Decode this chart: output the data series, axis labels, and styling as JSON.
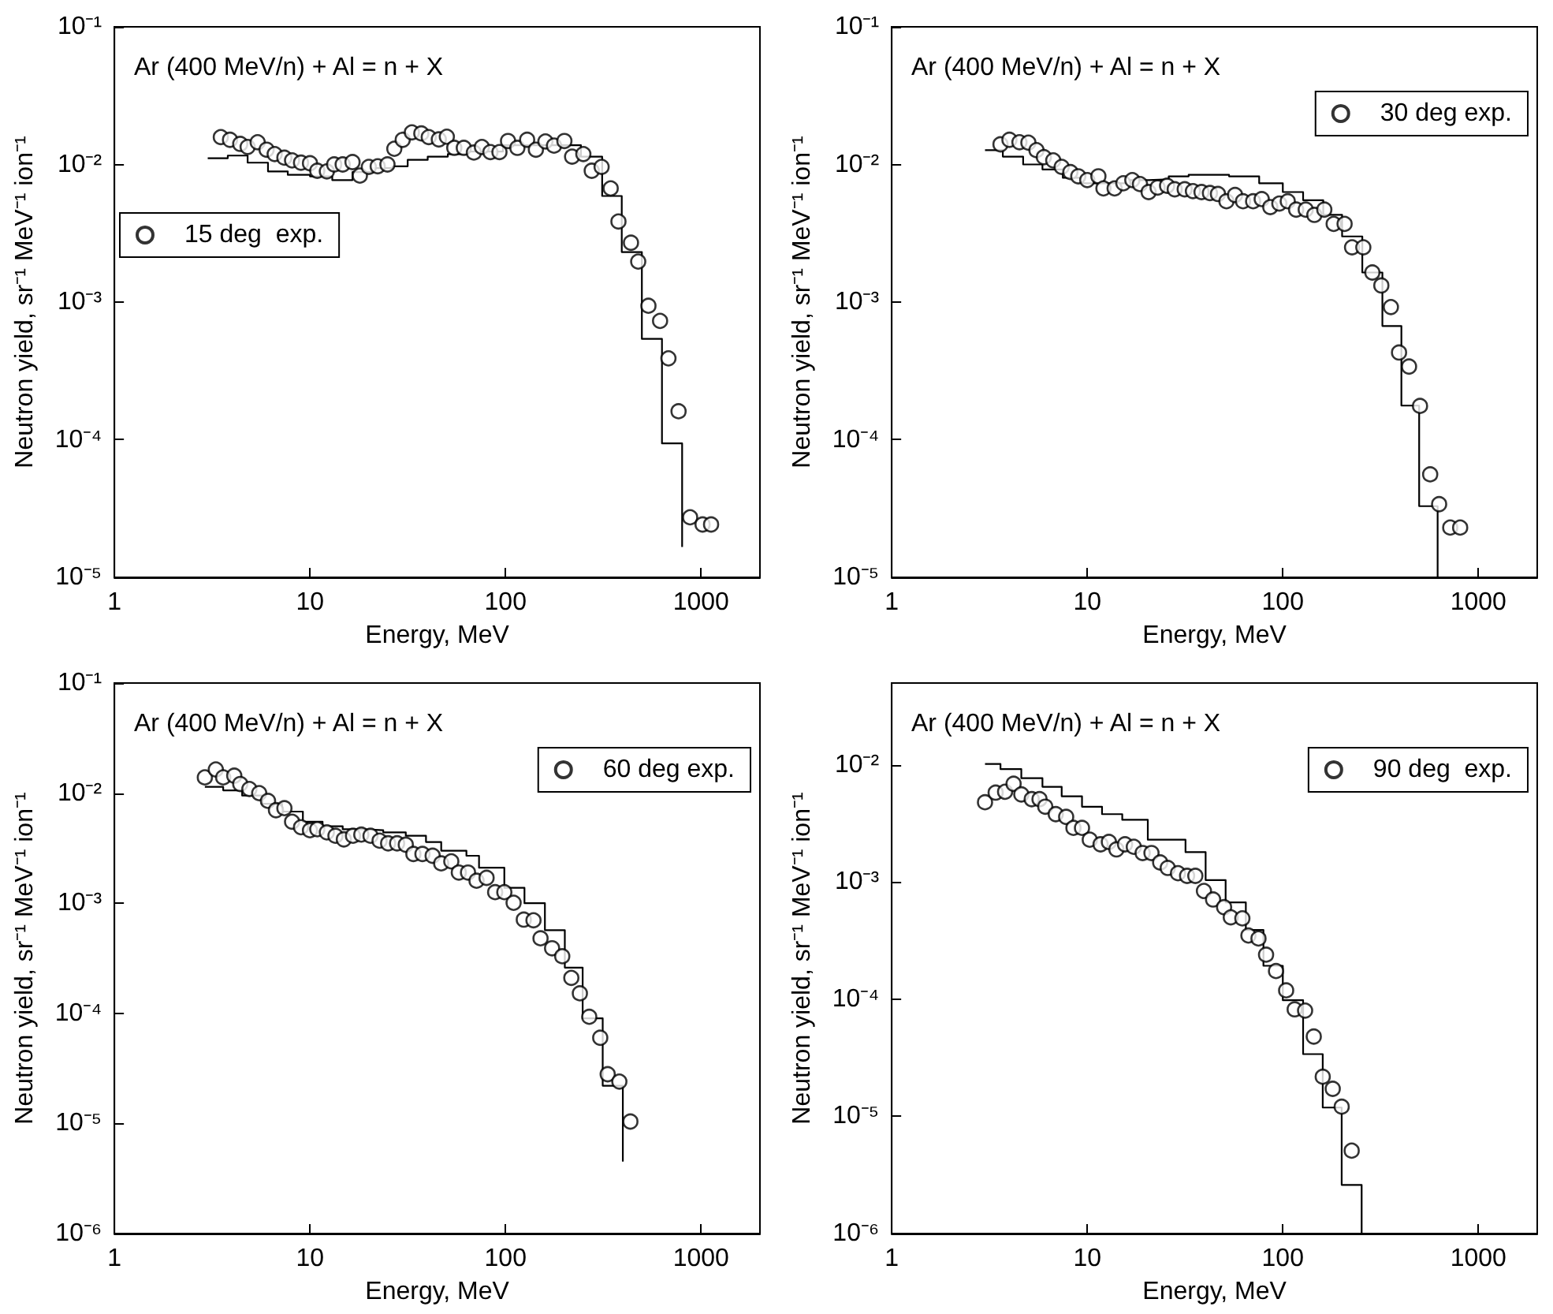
{
  "chart_data": [
    {
      "type": "scatter",
      "title": "Ar (400 MeV/n) + Al = n + X",
      "xlabel": "Energy, MeV",
      "ylabel": "Neutron yield, sr⁻¹ MeV⁻¹ ion⁻¹",
      "log": "xy",
      "legend": "left",
      "marker": "circle",
      "xlim": [
        1,
        2000
      ],
      "xticks": [
        1,
        10,
        100,
        1000
      ],
      "ylim": [
        1e-05,
        0.1
      ],
      "yticks": [
        {
          "value": 1e-05,
          "label": "10⁻⁵"
        },
        {
          "value": 0.0001,
          "label": "10⁻⁴"
        },
        {
          "value": 0.001,
          "label": "10⁻³"
        },
        {
          "value": 0.01,
          "label": "10⁻²"
        },
        {
          "value": 0.1,
          "label": "10⁻¹"
        }
      ],
      "series": [
        {
          "name": "15 deg  exp.",
          "color": "#000000",
          "x": [
            3.5,
            3.9,
            4.4,
            4.8,
            5.4,
            6.0,
            6.6,
            7.4,
            8.1,
            9.0,
            10,
            10.9,
            12.2,
            13.3,
            14.7,
            16.5,
            18.0,
            20.0,
            22.2,
            24.9,
            27.0,
            29.8,
            33.2,
            37.1,
            40.5,
            45.6,
            50.1,
            54.7,
            61.2,
            68.9,
            75.7,
            83.7,
            93.1,
            103,
            115,
            129,
            143,
            160,
            177,
            200,
            219,
            250,
            276,
            310,
            345,
            378,
            438,
            477,
            538,
            617,
            681,
            767,
            879,
            1018,
            1125
          ],
          "values": [
            0.0158,
            0.0151,
            0.0141,
            0.0134,
            0.0145,
            0.0128,
            0.0119,
            0.0112,
            0.0107,
            0.0103,
            0.0102,
            0.009,
            0.0089,
            0.01,
            0.01,
            0.0104,
            0.0083,
            0.0096,
            0.0097,
            0.01,
            0.013,
            0.0151,
            0.0171,
            0.0168,
            0.0158,
            0.0152,
            0.0159,
            0.0132,
            0.0132,
            0.0122,
            0.0134,
            0.0123,
            0.0123,
            0.0148,
            0.0132,
            0.0151,
            0.0128,
            0.0147,
            0.0137,
            0.0148,
            0.0114,
            0.0119,
            0.009,
            0.0096,
            0.0067,
            0.00385,
            0.0027,
            0.00197,
            0.00094,
            0.00073,
            0.00039,
            0.000161,
            2.73e-05,
            2.42e-05,
            2.42e-05
          ]
        },
        {
          "type": "step",
          "marker": "none",
          "color": "#000000",
          "x": [
            3.0,
            3.8,
            4.8,
            6.1,
            7.7,
            10,
            13,
            16.5,
            20.9,
            26.5,
            31.6,
            40,
            50.7,
            64.2,
            97,
            243,
            312,
            393,
            498,
            631,
            800
          ],
          "values": [
            0.0111,
            0.0116,
            0.0103,
            0.0089,
            0.0084,
            0.0082,
            0.0077,
            0.0088,
            0.0094,
            0.0097,
            0.0108,
            0.0114,
            0.0119,
            0.0124,
            0.0138,
            0.0114,
            0.0059,
            0.00231,
            0.00054,
            9.4e-05,
            1.66e-05
          ]
        }
      ]
    },
    {
      "type": "scatter",
      "title": "Ar (400 MeV/n) + Al = n + X",
      "xlabel": "Energy, MeV",
      "ylabel": "Neutron yield, sr⁻¹ MeV⁻¹ ion⁻¹",
      "log": "xy",
      "legend": "top right",
      "marker": "circle",
      "xlim": [
        1,
        2000
      ],
      "xticks": [
        1,
        10,
        100,
        1000
      ],
      "ylim": [
        1e-05,
        0.1
      ],
      "yticks": [
        {
          "value": 1e-05,
          "label": "10⁻⁵"
        },
        {
          "value": 0.0001,
          "label": "10⁻⁴"
        },
        {
          "value": 0.001,
          "label": "10⁻³"
        },
        {
          "value": 0.01,
          "label": "10⁻²"
        },
        {
          "value": 0.1,
          "label": "10⁻¹"
        }
      ],
      "series": [
        {
          "name": "30 deg exp.",
          "color": "#000000",
          "x": [
            3.6,
            4.0,
            4.5,
            5.0,
            5.5,
            6.0,
            6.7,
            7.4,
            8.2,
            9.0,
            10,
            11.4,
            12.1,
            13.8,
            15.3,
            17.0,
            18.6,
            20.6,
            22.9,
            25.6,
            28.0,
            31.5,
            34.7,
            38.4,
            42.4,
            46.6,
            51.5,
            57.0,
            62.6,
            70.5,
            78.0,
            86.3,
            96.0,
            106,
            117,
            131,
            145,
            163,
            182,
            207,
            226,
            258,
            287,
            319,
            357,
            393,
            442,
            503,
            567,
            630,
            718,
            807
          ],
          "values": [
            0.014,
            0.0151,
            0.0145,
            0.0144,
            0.0127,
            0.0113,
            0.0107,
            0.0096,
            0.0088,
            0.0082,
            0.0077,
            0.0082,
            0.0067,
            0.0067,
            0.0073,
            0.0077,
            0.0072,
            0.0063,
            0.0068,
            0.007,
            0.0066,
            0.0066,
            0.0064,
            0.0063,
            0.0062,
            0.0061,
            0.0054,
            0.006,
            0.0054,
            0.0054,
            0.0056,
            0.0049,
            0.0052,
            0.0054,
            0.0047,
            0.0047,
            0.0043,
            0.0047,
            0.0037,
            0.0037,
            0.0025,
            0.0025,
            0.00164,
            0.00132,
            0.00092,
            0.00043,
            0.00034,
            0.000176,
            5.6e-05,
            3.4e-05,
            2.3e-05,
            2.3e-05
          ]
        },
        {
          "type": "step",
          "marker": "none",
          "color": "#000000",
          "x": [
            3.0,
            3.7,
            4.7,
            5.9,
            7.5,
            9.5,
            12.8,
            16.3,
            20.6,
            26.1,
            33.0,
            53.1,
            75.7,
            100,
            127,
            161,
            201,
            255,
            323,
            404,
            498,
            619
          ],
          "values": [
            0.0127,
            0.0114,
            0.01,
            0.0092,
            0.008,
            0.0073,
            0.0073,
            0.0077,
            0.0078,
            0.0082,
            0.0084,
            0.0082,
            0.0073,
            0.0063,
            0.0055,
            0.0043,
            0.003,
            0.00164,
            0.00067,
            0.000177,
            3.29e-05,
            1e-05
          ]
        }
      ]
    },
    {
      "type": "scatter",
      "title": "Ar (400 MeV/n) + Al = n + X",
      "xlabel": "Energy, MeV",
      "ylabel": "Neutron yield, sr⁻¹ MeV⁻¹ ion⁻¹",
      "log": "xy",
      "legend": "top right",
      "marker": "circle",
      "xlim": [
        1,
        2000
      ],
      "xticks": [
        1,
        10,
        100,
        1000
      ],
      "ylim": [
        1e-06,
        0.1
      ],
      "yticks": [
        {
          "value": 1e-06,
          "label": "10⁻⁶"
        },
        {
          "value": 1e-05,
          "label": "10⁻⁵"
        },
        {
          "value": 0.0001,
          "label": "10⁻⁴"
        },
        {
          "value": 0.001,
          "label": "10⁻³"
        },
        {
          "value": 0.01,
          "label": "10⁻²"
        },
        {
          "value": 0.1,
          "label": "10⁻¹"
        }
      ],
      "series": [
        {
          "name": "60 deg exp.",
          "color": "#000000",
          "x": [
            2.9,
            3.3,
            3.6,
            4.1,
            4.4,
            4.9,
            5.5,
            6.1,
            6.7,
            7.4,
            8.1,
            9.0,
            10,
            10.9,
            12.2,
            13.5,
            14.9,
            16.6,
            18.3,
            20.4,
            22.7,
            25.1,
            27.9,
            30.9,
            33.8,
            37.6,
            42.4,
            46.9,
            52.8,
            57.7,
            64.3,
            71.1,
            80.0,
            88.5,
            98.6,
            110,
            124,
            139,
            151,
            173,
            195,
            217,
            240,
            268,
            305,
            333,
            382,
            435
          ],
          "values": [
            0.0139,
            0.0164,
            0.0139,
            0.0144,
            0.0121,
            0.0109,
            0.01,
            0.0085,
            0.007,
            0.0073,
            0.0055,
            0.0049,
            0.0046,
            0.0047,
            0.0044,
            0.0041,
            0.0038,
            0.0041,
            0.0042,
            0.0041,
            0.0037,
            0.0035,
            0.0035,
            0.0034,
            0.0028,
            0.0028,
            0.0027,
            0.0023,
            0.0024,
            0.0019,
            0.0019,
            0.0016,
            0.0017,
            0.00126,
            0.00126,
            0.00101,
            0.00071,
            0.0007,
            0.00048,
            0.00039,
            0.00033,
            0.00021,
            0.000152,
            9.3e-05,
            6e-05,
            2.8e-05,
            2.4e-05,
            1.04e-05
          ]
        },
        {
          "type": "step",
          "marker": "none",
          "color": "#000000",
          "x": [
            2.9,
            3.6,
            4.5,
            5.7,
            7.2,
            9.2,
            11.6,
            14.7,
            18.7,
            23.7,
            30.9,
            39.2,
            46.9,
            63.1,
            73.2,
            98.6,
            125,
            159,
            201,
            248,
            314,
            398
          ],
          "values": [
            0.0114,
            0.0106,
            0.0095,
            0.008,
            0.0068,
            0.0055,
            0.005,
            0.0047,
            0.0046,
            0.0044,
            0.0041,
            0.0036,
            0.003,
            0.0027,
            0.0021,
            0.00138,
            0.001,
            0.00057,
            0.00026,
            9e-05,
            2.2e-05,
            4.5e-06
          ]
        }
      ]
    },
    {
      "type": "scatter",
      "title": "Ar (400 MeV/n) + Al = n + X",
      "xlabel": "Energy, MeV",
      "ylabel": "Neutron yield, sr⁻¹ MeV⁻¹ ion⁻¹",
      "log": "xy",
      "legend": "top right",
      "marker": "circle",
      "xlim": [
        1,
        2000
      ],
      "xticks": [
        1,
        10,
        100,
        1000
      ],
      "ylim": [
        1e-06,
        0.05
      ],
      "yticks": [
        {
          "value": 1e-06,
          "label": "10⁻⁶"
        },
        {
          "value": 1e-05,
          "label": "10⁻⁵"
        },
        {
          "value": 0.0001,
          "label": "10⁻⁴"
        },
        {
          "value": 0.001,
          "label": "10⁻³"
        },
        {
          "value": 0.01,
          "label": "10⁻²"
        }
      ],
      "series": [
        {
          "name": "90 deg  exp.",
          "color": "#000000",
          "x": [
            3.0,
            3.4,
            3.8,
            4.2,
            4.6,
            5.2,
            5.7,
            6.1,
            6.9,
            7.8,
            8.5,
            9.4,
            10.3,
            11.7,
            12.9,
            14.1,
            15.6,
            17.3,
            19.2,
            21.3,
            23.6,
            25.8,
            29.1,
            32.4,
            35.7,
            39.5,
            44.0,
            50.1,
            54.2,
            62.1,
            66.7,
            75.1,
            82.1,
            92.3,
            104,
            115,
            130,
            144,
            160,
            180,
            200,
            225
          ],
          "values": [
            0.0048,
            0.0058,
            0.0059,
            0.0069,
            0.0056,
            0.0051,
            0.0051,
            0.0044,
            0.0038,
            0.0036,
            0.0029,
            0.0029,
            0.0023,
            0.0021,
            0.0022,
            0.0019,
            0.0021,
            0.002,
            0.00177,
            0.00177,
            0.00147,
            0.00132,
            0.00119,
            0.00113,
            0.00113,
            0.00084,
            0.00071,
            0.00061,
            0.0005,
            0.00049,
            0.00035,
            0.00033,
            0.00024,
            0.000174,
            0.000119,
            8.2e-05,
            8e-05,
            4.8e-05,
            2.18e-05,
            1.72e-05,
            1.21e-05,
            5.1e-06
          ]
        },
        {
          "type": "step",
          "marker": "none",
          "color": "#000000",
          "x": [
            3.0,
            3.6,
            4.6,
            5.9,
            7.4,
            9.4,
            11.9,
            15.1,
            20.4,
            31.8,
            40.3,
            51.0,
            64.7,
            79.6,
            100,
            127,
            160,
            200,
            253
          ],
          "values": [
            0.0102,
            0.0092,
            0.0077,
            0.0065,
            0.0054,
            0.0044,
            0.0038,
            0.0034,
            0.0023,
            0.0018,
            0.00104,
            0.00067,
            0.00039,
            0.000193,
            9.8e-05,
            3.4e-05,
            1.19e-05,
            2.6e-06,
            1e-06
          ]
        }
      ]
    }
  ]
}
